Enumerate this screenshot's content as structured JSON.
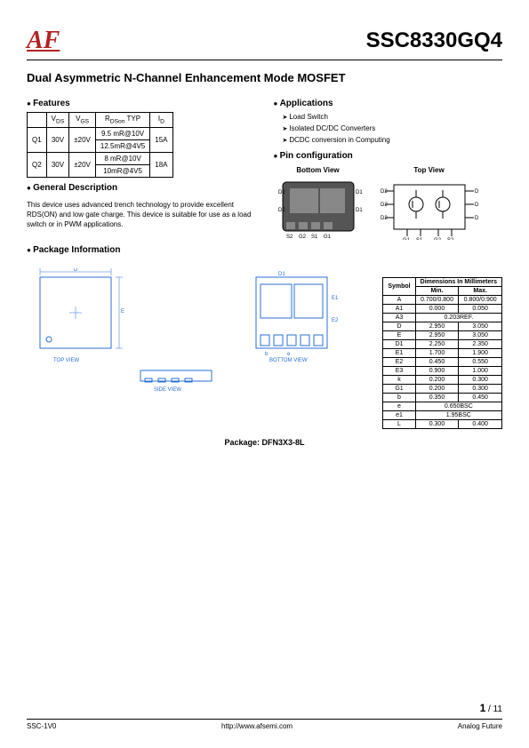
{
  "header": {
    "logo": "AF",
    "part_number": "SSC8330GQ4"
  },
  "subtitle": "Dual Asymmetric N-Channel Enhancement Mode MOSFET",
  "features_head": "Features",
  "applications_head": "Applications",
  "apps": [
    "Load Switch",
    "Isolated DC/DC Converters",
    "DCDC conversion in Computing"
  ],
  "pin_config_head": "Pin configuration",
  "bottom_view": "Bottom View",
  "top_view": "Top View",
  "general_desc_head": "General Description",
  "general_desc": "This device uses advanced trench technology to provide excellent RDS(ON) and low gate charge. This device is suitable for use as a load switch or in PWM applications.",
  "package_info_head": "Package Information",
  "spec_table": {
    "headers": [
      "",
      "VDS",
      "VGS",
      "RDSon TYP",
      "ID"
    ],
    "rows": [
      {
        "q": "Q1",
        "vds": "30V",
        "vgs": "±20V",
        "r1": "9.5 mR@10V",
        "r2": "12.5mR@4V5",
        "id": "15A"
      },
      {
        "q": "Q2",
        "vds": "30V",
        "vgs": "±20V",
        "r1": "8 mR@10V",
        "r2": "10mR@4V5",
        "id": "18A"
      }
    ]
  },
  "pkg_views": {
    "top": "TOP VIEW",
    "bottom": "BOTTOM VIEW",
    "side": "SIDE VIEW"
  },
  "package_name": "Package: DFN3X3-8L",
  "dim_table": {
    "title": "Dimensions In Millimeters",
    "symbol_head": "Symbol",
    "min_head": "Min.",
    "max_head": "Max.",
    "rows": [
      {
        "s": "A",
        "min": "0.700/0.800",
        "max": "0.800/0.900"
      },
      {
        "s": "A1",
        "min": "0.000",
        "max": "0.050"
      },
      {
        "s": "A3",
        "span": "0.203REF."
      },
      {
        "s": "D",
        "min": "2.950",
        "max": "3.050"
      },
      {
        "s": "E",
        "min": "2.950",
        "max": "3.050"
      },
      {
        "s": "D1",
        "min": "2.250",
        "max": "2.350"
      },
      {
        "s": "E1",
        "min": "1.700",
        "max": "1.900"
      },
      {
        "s": "E2",
        "min": "0.450",
        "max": "0.550"
      },
      {
        "s": "E3",
        "min": "0.900",
        "max": "1.000"
      },
      {
        "s": "k",
        "min": "0.200",
        "max": "0.300"
      },
      {
        "s": "G1",
        "min": "0.200",
        "max": "0.300"
      },
      {
        "s": "b",
        "min": "0.350",
        "max": "0.450"
      },
      {
        "s": "e",
        "span": "0.650BSC"
      },
      {
        "s": "e1",
        "span": "1.95BSC"
      },
      {
        "s": "L",
        "min": "0.300",
        "max": "0.400"
      }
    ]
  },
  "page": {
    "current": "1",
    "total": "11"
  },
  "footer": {
    "left": "SSC-1V0",
    "center": "http://www.afsemi.com",
    "right": "Analog Future"
  }
}
